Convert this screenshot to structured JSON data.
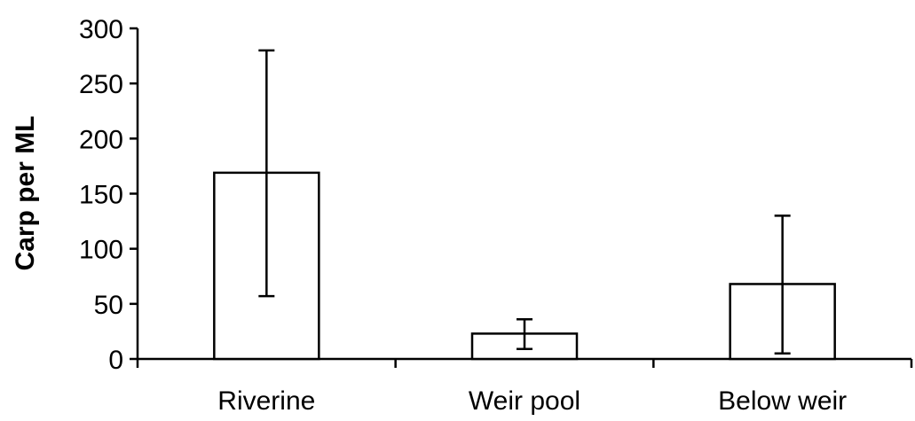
{
  "chart_data": {
    "type": "bar",
    "title": "",
    "xlabel": "",
    "ylabel": "Carp per ML",
    "categories": [
      "Riverine",
      "Weir pool",
      "Below weir"
    ],
    "values": [
      169,
      23,
      68
    ],
    "error_bars": {
      "lower": [
        57,
        9,
        5
      ],
      "upper": [
        280,
        36,
        130
      ]
    },
    "ylim": [
      0,
      300
    ],
    "yticks": [
      0,
      50,
      100,
      150,
      200,
      250,
      300
    ],
    "grid": false,
    "legend": "none",
    "colors": {
      "bar_fill": "#ffffff",
      "bar_stroke": "#000000",
      "axis": "#000000"
    }
  }
}
